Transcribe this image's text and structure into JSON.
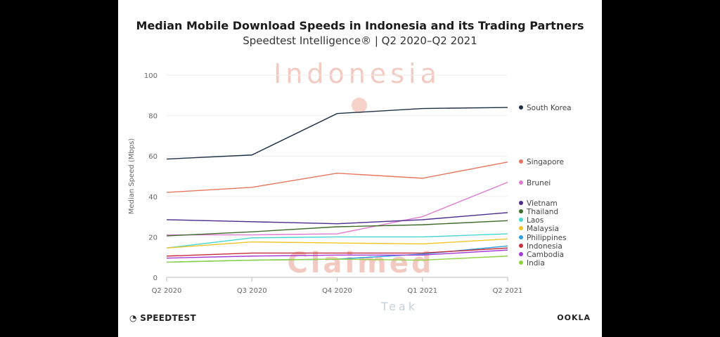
{
  "chart_data": {
    "type": "line",
    "title": "Median Mobile Download Speeds in Indonesia and its Trading Partners",
    "subtitle": "Speedtest Intelligence® | Q2 2020–Q2 2021",
    "xlabel": "",
    "ylabel": "Median Speed (Mbps)",
    "ylim": [
      0,
      100
    ],
    "yticks": [
      0,
      20,
      40,
      60,
      80,
      100
    ],
    "grid": true,
    "legend": "right",
    "categories": [
      "Q2 2020",
      "Q3 2020",
      "Q4 2020",
      "Q1 2021",
      "Q2 2021"
    ],
    "series": [
      {
        "name": "South Korea",
        "color": "#1d2f45",
        "values": [
          58.5,
          60.5,
          81,
          83.5,
          84
        ]
      },
      {
        "name": "Singapore",
        "color": "#e8775f",
        "values": [
          42,
          44.5,
          51.5,
          49,
          57
        ]
      },
      {
        "name": "Brunei",
        "color": "#e07ad0",
        "values": [
          21,
          21,
          21.5,
          30,
          47
        ]
      },
      {
        "name": "Vietnam",
        "color": "#4b2a8c",
        "values": [
          28.5,
          27.5,
          26.5,
          28.5,
          32
        ]
      },
      {
        "name": "Thailand",
        "color": "#3d6b2a",
        "values": [
          20.5,
          22.5,
          25,
          26,
          28
        ]
      },
      {
        "name": "Laos",
        "color": "#45d6d0",
        "values": [
          14.5,
          19.5,
          20,
          20,
          21.5
        ]
      },
      {
        "name": "Malaysia",
        "color": "#f0c52a",
        "values": [
          14.5,
          17.5,
          17,
          16.5,
          19
        ]
      },
      {
        "name": "Philippines",
        "color": "#2f9fe0",
        "values": [
          7.5,
          8.5,
          9,
          11.5,
          15.5
        ]
      },
      {
        "name": "Indonesia",
        "color": "#c62d3a",
        "values": [
          10.5,
          12,
          12,
          12,
          14.5
        ]
      },
      {
        "name": "Cambodia",
        "color": "#a33ad6",
        "values": [
          9.5,
          10.5,
          11,
          11,
          13.5
        ]
      },
      {
        "name": "India",
        "color": "#8fd33a",
        "values": [
          7.5,
          8.5,
          9,
          8.5,
          10.5
        ]
      }
    ]
  },
  "footer": {
    "left_logo": "SPEEDTEST",
    "right_logo": "OOKLA"
  },
  "watermark": {
    "top": "Indonesia",
    "bottom": "Claimed",
    "small": "Teak"
  }
}
